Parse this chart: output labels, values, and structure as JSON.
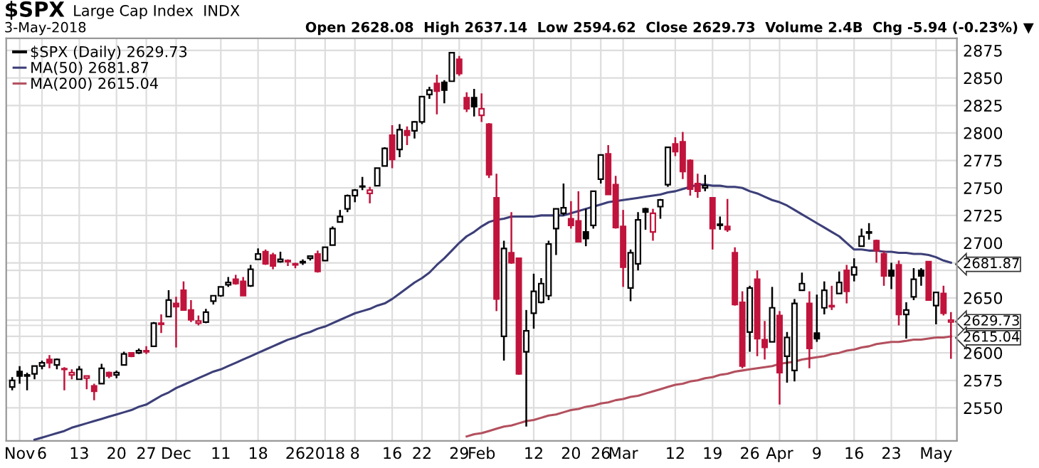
{
  "chart_data": {
    "type": "candlestick",
    "title": "$SPX",
    "subtitle": "Large Cap Index  INDX",
    "annotations": [
      "3-May-2018",
      "Open 2628.08  High 2637.14  Low 2594.62  Close 2629.73  Volume 2.4B  Chg -5.94 (-0.23%) ▼"
    ],
    "categories": [
      null,
      "Nov",
      null,
      null,
      "6",
      null,
      null,
      null,
      null,
      "13",
      null,
      null,
      null,
      null,
      "20",
      null,
      null,
      null,
      "27",
      null,
      null,
      null,
      "Dec",
      null,
      null,
      null,
      null,
      null,
      "11",
      null,
      null,
      null,
      null,
      "18",
      null,
      null,
      null,
      null,
      "26",
      null,
      null,
      null,
      "2018",
      null,
      null,
      null,
      "8",
      null,
      null,
      null,
      null,
      "16",
      null,
      null,
      null,
      "22",
      null,
      null,
      null,
      null,
      "29",
      null,
      null,
      "Feb",
      null,
      null,
      null,
      null,
      null,
      null,
      "12",
      null,
      null,
      null,
      null,
      "20",
      null,
      null,
      null,
      "26",
      null,
      null,
      "Mar",
      null,
      null,
      null,
      null,
      null,
      null,
      "12",
      null,
      null,
      null,
      null,
      "19",
      null,
      null,
      null,
      null,
      "26",
      null,
      null,
      null,
      "Apr",
      null,
      null,
      null,
      null,
      "9",
      null,
      null,
      null,
      null,
      "16",
      null,
      null,
      null,
      null,
      "23",
      null,
      null,
      null,
      null,
      null,
      "May",
      null,
      null
    ],
    "series": [
      {
        "name": "$SPX (Daily) 2629.73",
        "type": "candlestick",
        "color": "#000000",
        "ohlc": [
          [
            2569,
            2578,
            2566,
            2575
          ],
          [
            2583,
            2588,
            2572,
            2579
          ],
          [
            2579,
            2582,
            2566,
            2580
          ],
          [
            2581,
            2588,
            2576,
            2588
          ],
          [
            2588,
            2593,
            2585,
            2591
          ],
          [
            2594,
            2598,
            2586,
            2591
          ],
          [
            2589,
            2595,
            2585,
            2594
          ],
          [
            2585,
            2587,
            2566,
            2585
          ],
          [
            2580,
            2585,
            2576,
            2582
          ],
          [
            2576,
            2588,
            2576,
            2585
          ],
          [
            2577,
            2579,
            2567,
            2579
          ],
          [
            2570,
            2572,
            2557,
            2565
          ],
          [
            2572,
            2590,
            2572,
            2586
          ],
          [
            2582,
            2583,
            2577,
            2579
          ],
          [
            2580,
            2584,
            2577,
            2582
          ],
          [
            2589,
            2601,
            2589,
            2599
          ],
          [
            2600,
            2600,
            2596,
            2597
          ],
          [
            2600,
            2604,
            2599,
            2602
          ],
          [
            2602,
            2606,
            2599,
            2601
          ],
          [
            2606,
            2628,
            2606,
            2627
          ],
          [
            2627,
            2635,
            2618,
            2626
          ],
          [
            2633,
            2657,
            2633,
            2648
          ],
          [
            2645,
            2651,
            2605,
            2642
          ],
          [
            2657,
            2665,
            2639,
            2639
          ],
          [
            2639,
            2648,
            2628,
            2630
          ],
          [
            2627,
            2634,
            2625,
            2629
          ],
          [
            2628,
            2640,
            2627,
            2637
          ],
          [
            2647,
            2652,
            2644,
            2652
          ],
          [
            2652,
            2660,
            2651,
            2660
          ],
          [
            2662,
            2669,
            2660,
            2664
          ],
          [
            2667,
            2671,
            2662,
            2663
          ],
          [
            2665,
            2669,
            2652,
            2652
          ],
          [
            2661,
            2680,
            2660,
            2676
          ],
          [
            2685,
            2695,
            2685,
            2690
          ],
          [
            2692,
            2694,
            2680,
            2681
          ],
          [
            2689,
            2691,
            2676,
            2679
          ],
          [
            2683,
            2692,
            2682,
            2685
          ],
          [
            2684,
            2685,
            2679,
            2683
          ],
          [
            2680,
            2682,
            2677,
            2681
          ],
          [
            2682,
            2685,
            2680,
            2683
          ],
          [
            2686,
            2688,
            2684,
            2688
          ],
          [
            2690,
            2693,
            2673,
            2674
          ],
          [
            2684,
            2696,
            2684,
            2696
          ],
          [
            2698,
            2715,
            2698,
            2713
          ],
          [
            2719,
            2730,
            2719,
            2724
          ],
          [
            2731,
            2744,
            2728,
            2743
          ],
          [
            2743,
            2749,
            2737,
            2748
          ],
          [
            2751,
            2760,
            2748,
            2751
          ],
          [
            2745,
            2751,
            2736,
            2748
          ],
          [
            2752,
            2768,
            2752,
            2768
          ],
          [
            2770,
            2787,
            2770,
            2786
          ],
          [
            2798,
            2807,
            2768,
            2776
          ],
          [
            2785,
            2808,
            2778,
            2803
          ],
          [
            2802,
            2806,
            2789,
            2798
          ],
          [
            2802,
            2811,
            2795,
            2810
          ],
          [
            2810,
            2833,
            2808,
            2833
          ],
          [
            2835,
            2842,
            2831,
            2839
          ],
          [
            2845,
            2853,
            2817,
            2838
          ],
          [
            2846,
            2848,
            2827,
            2839
          ],
          [
            2847,
            2873,
            2847,
            2873
          ],
          [
            2867,
            2870,
            2852,
            2854
          ],
          [
            2832,
            2837,
            2819,
            2822
          ],
          [
            2832,
            2840,
            2815,
            2824
          ],
          [
            2816,
            2836,
            2810,
            2822
          ],
          [
            2808,
            2809,
            2759,
            2762
          ],
          [
            2741,
            2763,
            2638,
            2649
          ],
          [
            2615,
            2702,
            2593,
            2695
          ],
          [
            2691,
            2728,
            2681,
            2682
          ],
          [
            2686,
            2686,
            2580,
            2581
          ],
          [
            2601,
            2639,
            2533,
            2620
          ],
          [
            2636,
            2672,
            2622,
            2656
          ],
          [
            2646,
            2668,
            2645,
            2663
          ],
          [
            2652,
            2702,
            2648,
            2699
          ],
          [
            2713,
            2731,
            2689,
            2731
          ],
          [
            2727,
            2754,
            2725,
            2732
          ],
          [
            2722,
            2738,
            2713,
            2716
          ],
          [
            2720,
            2747,
            2701,
            2701
          ],
          [
            2710,
            2731,
            2697,
            2704
          ],
          [
            2716,
            2747,
            2713,
            2747
          ],
          [
            2758,
            2780,
            2754,
            2780
          ],
          [
            2781,
            2789,
            2744,
            2744
          ],
          [
            2753,
            2761,
            2713,
            2714
          ],
          [
            2715,
            2730,
            2660,
            2678
          ],
          [
            2659,
            2694,
            2647,
            2691
          ],
          [
            2681,
            2728,
            2675,
            2721
          ],
          [
            2731,
            2732,
            2712,
            2728
          ],
          [
            2710,
            2731,
            2702,
            2727
          ],
          [
            2733,
            2740,
            2722,
            2739
          ],
          [
            2753,
            2787,
            2751,
            2787
          ],
          [
            2790,
            2796,
            2779,
            2783
          ],
          [
            2792,
            2801,
            2758,
            2765
          ],
          [
            2775,
            2776,
            2743,
            2749
          ],
          [
            2754,
            2763,
            2741,
            2747
          ],
          [
            2750,
            2762,
            2747,
            2752
          ],
          [
            2741,
            2741,
            2694,
            2713
          ],
          [
            2716,
            2724,
            2712,
            2717
          ],
          [
            2715,
            2740,
            2710,
            2712
          ],
          [
            2691,
            2696,
            2643,
            2644
          ],
          [
            2646,
            2656,
            2586,
            2588
          ],
          [
            2619,
            2661,
            2601,
            2659
          ],
          [
            2667,
            2675,
            2597,
            2613
          ],
          [
            2612,
            2629,
            2594,
            2605
          ],
          [
            2610,
            2660,
            2610,
            2641
          ],
          [
            2634,
            2638,
            2553,
            2582
          ],
          [
            2597,
            2619,
            2573,
            2614
          ],
          [
            2584,
            2649,
            2574,
            2645
          ],
          [
            2657,
            2673,
            2657,
            2663
          ],
          [
            2645,
            2656,
            2586,
            2604
          ],
          [
            2618,
            2653,
            2610,
            2613
          ],
          [
            2641,
            2665,
            2635,
            2657
          ],
          [
            2643,
            2661,
            2639,
            2642
          ],
          [
            2654,
            2674,
            2654,
            2664
          ],
          [
            2675,
            2680,
            2645,
            2656
          ],
          [
            2671,
            2686,
            2665,
            2678
          ],
          [
            2697,
            2713,
            2697,
            2706
          ],
          [
            2710,
            2718,
            2703,
            2709
          ],
          [
            2702,
            2703,
            2682,
            2693
          ],
          [
            2690,
            2693,
            2661,
            2670
          ],
          [
            2675,
            2682,
            2658,
            2670
          ],
          [
            2680,
            2684,
            2625,
            2635
          ],
          [
            2635,
            2646,
            2613,
            2639
          ],
          [
            2651,
            2677,
            2648,
            2667
          ],
          [
            2675,
            2677,
            2661,
            2670
          ],
          [
            2683,
            2683,
            2648,
            2648
          ],
          [
            2643,
            2655,
            2626,
            2655
          ],
          [
            2654,
            2661,
            2634,
            2636
          ],
          [
            2628.08,
            2637.14,
            2594.62,
            2629.73
          ]
        ],
        "colors": [
          "#000000",
          "#000000",
          "#000000",
          "#000000",
          "#000000",
          "#c0143c",
          "#000000",
          "#c0143c",
          "#c0143c",
          "#000000",
          "#c0143c",
          "#c0143c",
          "#000000",
          "#c0143c",
          "#000000",
          "#000000",
          "#c0143c",
          "#000000",
          "#c0143c",
          "#000000",
          "#c0143c",
          "#000000",
          "#c0143c",
          "#c0143c",
          "#c0143c",
          "#c0143c",
          "#000000",
          "#000000",
          "#000000",
          "#000000",
          "#c0143c",
          "#c0143c",
          "#000000",
          "#000000",
          "#c0143c",
          "#c0143c",
          "#000000",
          "#c0143c",
          "#c0143c",
          "#000000",
          "#000000",
          "#c0143c",
          "#000000",
          "#000000",
          "#000000",
          "#000000",
          "#000000",
          "#000000",
          "#c0143c",
          "#000000",
          "#000000",
          "#c0143c",
          "#000000",
          "#c0143c",
          "#000000",
          "#000000",
          "#000000",
          "#c0143c",
          "#000000",
          "#000000",
          "#c0143c",
          "#c0143c",
          "#000000",
          "#c0143c",
          "#c0143c",
          "#c0143c",
          "#000000",
          "#c0143c",
          "#c0143c",
          "#000000",
          "#000000",
          "#000000",
          "#000000",
          "#000000",
          "#000000",
          "#c0143c",
          "#c0143c",
          "#000000",
          "#000000",
          "#000000",
          "#c0143c",
          "#c0143c",
          "#c0143c",
          "#000000",
          "#000000",
          "#000000",
          "#c0143c",
          "#000000",
          "#000000",
          "#c0143c",
          "#c0143c",
          "#c0143c",
          "#c0143c",
          "#000000",
          "#c0143c",
          "#000000",
          "#c0143c",
          "#c0143c",
          "#c0143c",
          "#000000",
          "#c0143c",
          "#c0143c",
          "#000000",
          "#c0143c",
          "#000000",
          "#000000",
          "#000000",
          "#c0143c",
          "#000000",
          "#000000",
          "#c0143c",
          "#000000",
          "#c0143c",
          "#000000",
          "#000000",
          "#000000",
          "#c0143c",
          "#c0143c",
          "#000000",
          "#c0143c",
          "#000000",
          "#000000",
          "#000000",
          "#c0143c",
          "#000000",
          "#c0143c",
          "#c0143c"
        ]
      },
      {
        "name": "MA(50) 2681.87",
        "type": "line",
        "color": "#3c3f78",
        "values": [
          null,
          null,
          null,
          2521,
          2523,
          2525,
          2527,
          2529,
          2532,
          2534,
          2536,
          2538,
          2540,
          2542,
          2544,
          2546,
          2548,
          2551,
          2553,
          2557,
          2561,
          2564,
          2568,
          2571,
          2574,
          2577,
          2580,
          2583,
          2585,
          2588,
          2591,
          2594,
          2597,
          2600,
          2603,
          2606,
          2609,
          2612,
          2614,
          2617,
          2619,
          2622,
          2624,
          2627,
          2630,
          2633,
          2636,
          2638,
          2640,
          2643,
          2645,
          2649,
          2654,
          2659,
          2664,
          2668,
          2673,
          2680,
          2686,
          2693,
          2700,
          2706,
          2710,
          2715,
          2719,
          2721,
          2722,
          2724,
          2724,
          2724,
          2724,
          2725,
          2725,
          2725,
          2725,
          2727,
          2729,
          2731,
          2733,
          2735,
          2737,
          2738,
          2739,
          2740,
          2741,
          2742,
          2743,
          2744,
          2746,
          2747,
          2749,
          2751,
          2753,
          2753,
          2752,
          2752,
          2751,
          2751,
          2750,
          2747,
          2745,
          2742,
          2739,
          2737,
          2734,
          2730,
          2726,
          2722,
          2718,
          2714,
          2710,
          2706,
          2700,
          2694,
          2694,
          2693,
          2693,
          2692,
          2692,
          2691,
          2691,
          2690,
          2690,
          2689,
          2687,
          2684,
          2682
        ]
      },
      {
        "name": "MA(200) 2615.04",
        "type": "line",
        "color": "#b3505e",
        "values": [
          null,
          null,
          null,
          null,
          null,
          null,
          null,
          null,
          null,
          null,
          null,
          null,
          null,
          null,
          null,
          null,
          null,
          null,
          null,
          null,
          null,
          null,
          null,
          null,
          null,
          null,
          null,
          null,
          null,
          null,
          null,
          null,
          null,
          null,
          null,
          null,
          null,
          null,
          null,
          null,
          null,
          null,
          null,
          null,
          null,
          null,
          null,
          null,
          null,
          null,
          null,
          null,
          null,
          null,
          null,
          null,
          null,
          null,
          null,
          null,
          null,
          2524,
          2526,
          2527,
          2529,
          2531,
          2533,
          2534,
          2536,
          2538,
          2539,
          2541,
          2543,
          2544,
          2546,
          2548,
          2549,
          2551,
          2552,
          2554,
          2555,
          2557,
          2558,
          2560,
          2561,
          2563,
          2565,
          2567,
          2569,
          2571,
          2572,
          2574,
          2575,
          2577,
          2578,
          2580,
          2581,
          2583,
          2584,
          2585,
          2586,
          2587,
          2588,
          2590,
          2591,
          2592,
          2594,
          2595,
          2596,
          2597,
          2599,
          2600,
          2602,
          2603,
          2605,
          2606,
          2608,
          2609,
          2610,
          2610,
          2611,
          2612,
          2612,
          2613,
          2614,
          2614,
          2615
        ]
      }
    ],
    "ylim": [
      2520,
      2886
    ],
    "yticks": [
      2550,
      2575,
      2600,
      {
        "value": 2625,
        "label": null
      },
      2650,
      {
        "value": 2675,
        "label": null
      },
      2700,
      2725,
      2750,
      2775,
      2800,
      2825,
      2850,
      2875,
      {
        "value": 2681.87,
        "label": "2681.87"
      },
      {
        "value": 2629.73,
        "label": "2629.73"
      },
      {
        "value": 2615.04,
        "label": "2615.04"
      }
    ],
    "grid": true,
    "legend": "top left"
  }
}
